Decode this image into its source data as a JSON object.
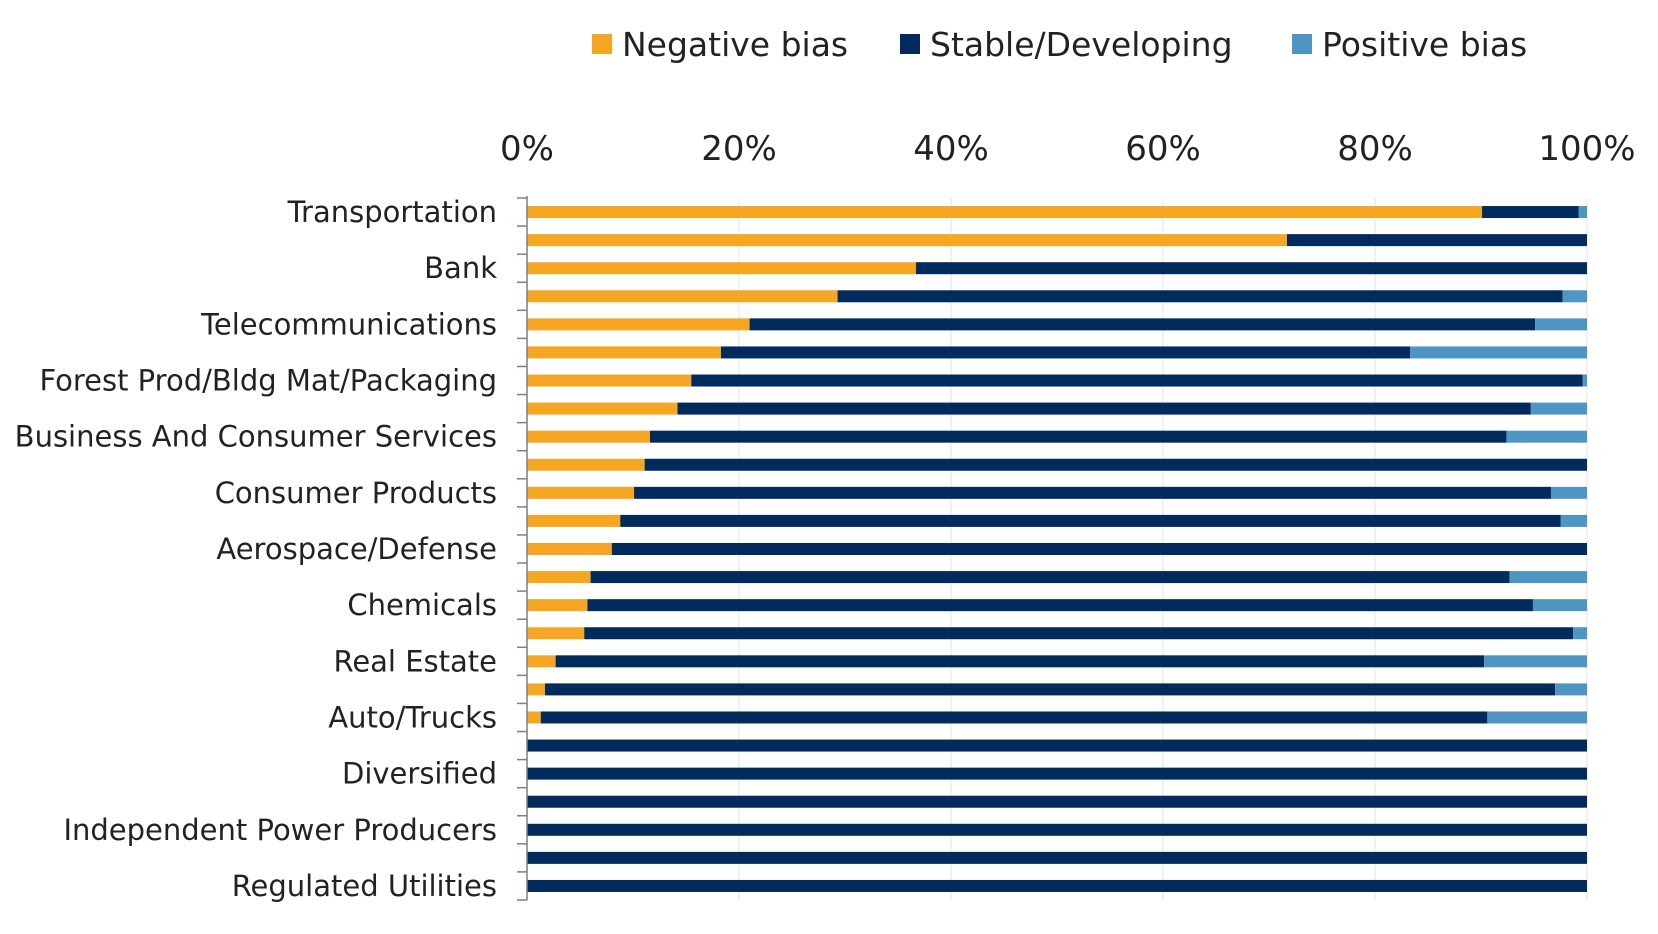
{
  "chart_data": {
    "type": "bar",
    "orientation": "horizontal",
    "stacked": true,
    "title": "",
    "xlabel": "",
    "ylabel": "",
    "xlim": [
      0,
      100
    ],
    "x_ticks": [
      "0%",
      "20%",
      "40%",
      "60%",
      "80%",
      "100%"
    ],
    "x_tick_values": [
      0,
      20,
      40,
      60,
      80,
      100
    ],
    "x_axis_position": "top",
    "grid": "vertical",
    "legend_position": "top-right",
    "categories": [
      "Transportation",
      "",
      "Bank",
      "",
      "Telecommunications",
      "",
      "Forest Prod/Bldg Mat/Packaging",
      "",
      "Business And Consumer Services",
      "",
      "Consumer Products",
      "",
      "Aerospace/Defense",
      "",
      "Chemicals",
      "",
      "Real Estate",
      "",
      "Auto/Trucks",
      "",
      "Diversified",
      "",
      "Independent Power Producers",
      "",
      "Regulated Utilities"
    ],
    "series": [
      {
        "name": "Negative bias",
        "color": "#F5A623",
        "values": [
          90.1,
          71.7,
          36.7,
          29.3,
          21.0,
          18.3,
          15.5,
          14.2,
          11.6,
          11.1,
          10.1,
          8.8,
          8.0,
          6.0,
          5.7,
          5.4,
          2.7,
          1.7,
          1.3,
          0,
          0,
          0,
          0,
          0,
          0
        ]
      },
      {
        "name": "Stable/Developing",
        "color": "#002B5C",
        "values": [
          9.1,
          28.3,
          63.3,
          68.4,
          74.1,
          65.0,
          84.1,
          80.5,
          80.8,
          88.9,
          86.5,
          88.7,
          92.0,
          86.7,
          89.2,
          93.3,
          87.6,
          95.3,
          89.3,
          100,
          100,
          100,
          100,
          100,
          100
        ]
      },
      {
        "name": "Positive bias",
        "color": "#4E95C4",
        "values": [
          0.8,
          0,
          0,
          2.3,
          4.9,
          16.7,
          0.4,
          5.3,
          7.6,
          0,
          3.4,
          2.5,
          0,
          7.3,
          5.1,
          1.3,
          9.7,
          3.0,
          9.4,
          0,
          0,
          0,
          0,
          0,
          0
        ]
      }
    ]
  }
}
